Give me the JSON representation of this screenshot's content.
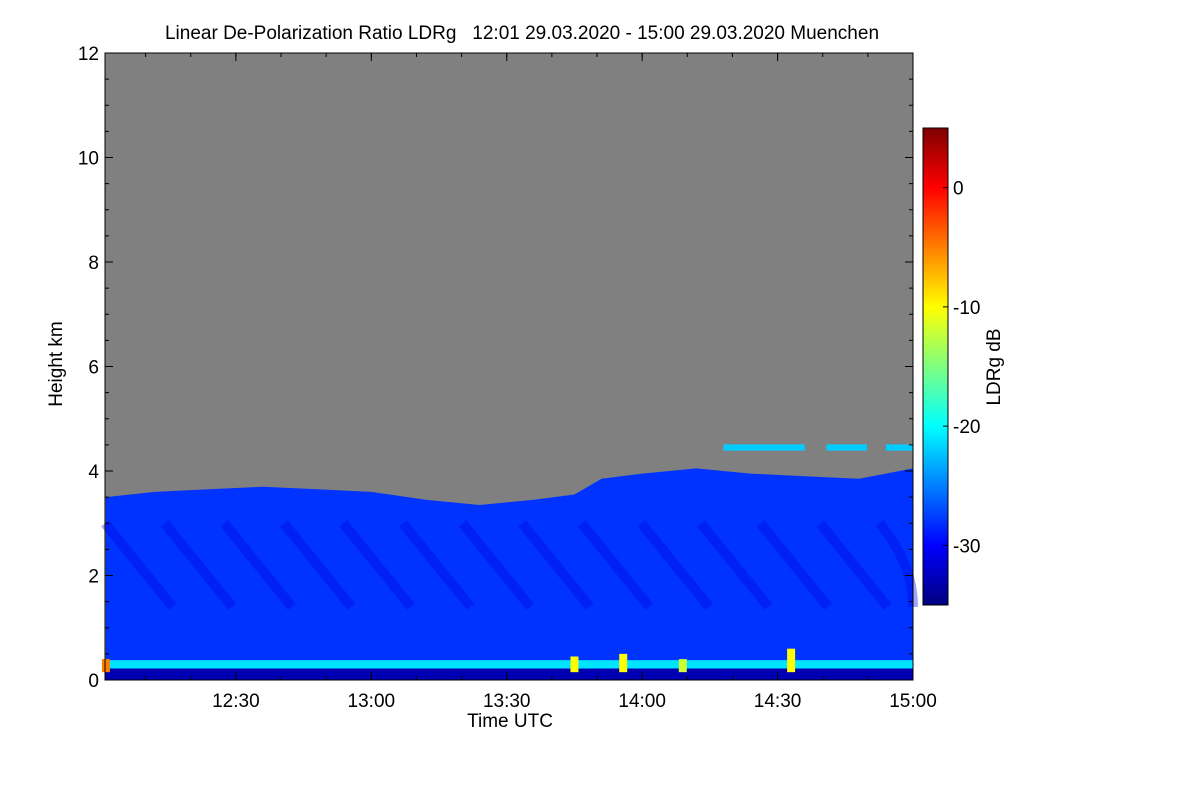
{
  "chart_data": {
    "type": "heatmap",
    "title": "Linear De-Polarization Ratio LDRg   12:01 29.03.2020 - 15:00 29.03.2020 Muenchen",
    "xlabel": "Time UTC",
    "ylabel": "Height km",
    "x_range_hours": [
      12.0167,
      15.0
    ],
    "y_range_km": [
      0,
      12
    ],
    "x_ticks": [
      {
        "value": 12.5,
        "label": "12:30"
      },
      {
        "value": 13.0,
        "label": "13:00"
      },
      {
        "value": 13.5,
        "label": "13:30"
      },
      {
        "value": 14.0,
        "label": "14:00"
      },
      {
        "value": 14.5,
        "label": "14:30"
      },
      {
        "value": 15.0,
        "label": "15:00"
      }
    ],
    "y_ticks": [
      {
        "value": 0,
        "label": "0"
      },
      {
        "value": 2,
        "label": "2"
      },
      {
        "value": 4,
        "label": "4"
      },
      {
        "value": 6,
        "label": "6"
      },
      {
        "value": 8,
        "label": "8"
      },
      {
        "value": 10,
        "label": "10"
      },
      {
        "value": 12,
        "label": "12"
      }
    ],
    "colorbar": {
      "label": "LDRg dB",
      "range": [
        -35,
        5
      ],
      "ticks": [
        {
          "value": 0,
          "label": "0"
        },
        {
          "value": -10,
          "label": "-10"
        },
        {
          "value": -20,
          "label": "-20"
        },
        {
          "value": -30,
          "label": "-30"
        }
      ],
      "colors": [
        "#00007f",
        "#0000ff",
        "#007fff",
        "#00ffff",
        "#7fff7f",
        "#ffff00",
        "#ff7f00",
        "#ff0000",
        "#7f0000"
      ]
    },
    "no_signal_color": "#808080",
    "cloud_top_km": [
      {
        "t": 12.02,
        "h": 3.5
      },
      {
        "t": 12.2,
        "h": 3.6
      },
      {
        "t": 12.4,
        "h": 3.65
      },
      {
        "t": 12.6,
        "h": 3.7
      },
      {
        "t": 12.8,
        "h": 3.65
      },
      {
        "t": 13.0,
        "h": 3.6
      },
      {
        "t": 13.2,
        "h": 3.45
      },
      {
        "t": 13.4,
        "h": 3.35
      },
      {
        "t": 13.6,
        "h": 3.45
      },
      {
        "t": 13.75,
        "h": 3.55
      },
      {
        "t": 13.85,
        "h": 3.85
      },
      {
        "t": 14.0,
        "h": 3.95
      },
      {
        "t": 14.2,
        "h": 4.05
      },
      {
        "t": 14.4,
        "h": 3.95
      },
      {
        "t": 14.6,
        "h": 3.9
      },
      {
        "t": 14.8,
        "h": 3.85
      },
      {
        "t": 15.0,
        "h": 4.05
      }
    ],
    "boundary_layer_band_km": 0.3,
    "boundary_layer_ldr_db": -21,
    "aerosol_layer_ldr_db": -28,
    "near_surface_ldr_db": -33,
    "high_patches": [
      {
        "t0": 14.3,
        "t1": 14.6,
        "h": 4.45,
        "ldr_db": -22
      },
      {
        "t0": 14.68,
        "t1": 14.83,
        "h": 4.45,
        "ldr_db": -22
      },
      {
        "t0": 14.9,
        "t1": 15.0,
        "h": 4.45,
        "ldr_db": -22
      }
    ],
    "depolarization_spikes": [
      {
        "t": 12.02,
        "h": 0.4,
        "ldr_db": -5
      },
      {
        "t": 13.75,
        "h": 0.45,
        "ldr_db": -10
      },
      {
        "t": 13.93,
        "h": 0.5,
        "ldr_db": -10
      },
      {
        "t": 14.15,
        "h": 0.4,
        "ldr_db": -12
      },
      {
        "t": 14.55,
        "h": 0.6,
        "ldr_db": -10
      }
    ]
  }
}
